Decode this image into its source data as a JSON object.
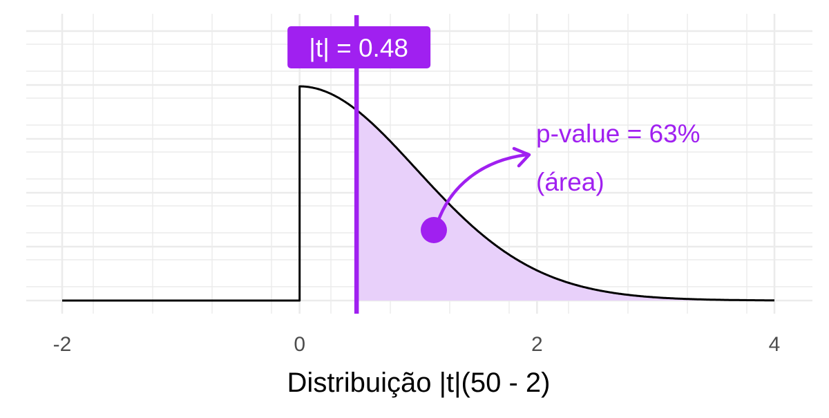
{
  "chart_data": {
    "type": "area",
    "title": "",
    "xlabel": "Distribuição |t|(50 - 2)",
    "ylabel": "",
    "df": 48,
    "xlim": [
      -2,
      4
    ],
    "x_ticks": [
      -2,
      0,
      2,
      4
    ],
    "x_tick_labels": [
      "-2",
      "0",
      "2",
      "4"
    ],
    "y_tick_labels": [],
    "grid": true,
    "series": [
      {
        "type": "line",
        "description": "density of |t| with 48 degrees of freedom, zero for x < 0",
        "x": [
          -2,
          -1,
          0,
          0,
          0.25,
          0.5,
          0.75,
          1,
          1.25,
          1.5,
          1.75,
          2,
          2.5,
          3,
          3.5,
          4
        ],
        "y": [
          0,
          0,
          0,
          0.795,
          0.771,
          0.704,
          0.601,
          0.481,
          0.359,
          0.249,
          0.162,
          0.098,
          0.03,
          0.008,
          0.002,
          0.0004
        ]
      }
    ],
    "observed": {
      "value": 0.48,
      "label": "|t| = 0.48"
    },
    "shaded_area": {
      "from": 0.48,
      "to": 4
    },
    "annotation": {
      "line1": "p-value = 63%",
      "line2": "(área)"
    },
    "colors": {
      "accent": "#a020f0",
      "area_fill": "#e8d0fa",
      "curve": "#000000",
      "grid": "#ebebeb",
      "tick_text": "#4d4d4d"
    }
  }
}
